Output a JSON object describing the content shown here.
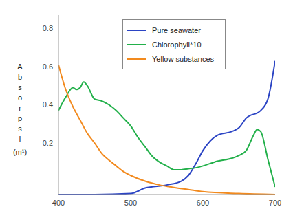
{
  "chart_data": {
    "type": "line",
    "y_label": "Absorpsi (m¹)",
    "xlim": [
      400,
      700
    ],
    "xticks": [
      400,
      500,
      600,
      700
    ],
    "ylim": [
      -0.07,
      0.87
    ],
    "yticks": [
      0.2,
      0.4,
      0.6,
      0.8
    ],
    "grid": false,
    "legend": "top",
    "series": [
      {
        "name": "Pure seawater",
        "color": "#2b44c4",
        "x": [
          400,
          450,
          500,
          520,
          550,
          570,
          580,
          590,
          600,
          610,
          620,
          640,
          650,
          660,
          680,
          690,
          700
        ],
        "values": [
          -0.07,
          -0.07,
          -0.065,
          -0.036,
          -0.02,
          0.0,
          0.03,
          0.09,
          0.16,
          0.21,
          0.24,
          0.26,
          0.28,
          0.33,
          0.37,
          0.43,
          0.63
        ]
      },
      {
        "name": "Chlorophyll*10",
        "color": "#22b04a",
        "x": [
          400,
          410,
          420,
          425,
          430,
          435,
          440,
          450,
          460,
          470,
          480,
          490,
          500,
          510,
          520,
          530,
          540,
          550,
          560,
          570,
          580,
          590,
          600,
          620,
          640,
          650,
          660,
          670,
          675,
          680,
          690,
          700
        ],
        "values": [
          0.37,
          0.44,
          0.49,
          0.48,
          0.49,
          0.52,
          0.5,
          0.43,
          0.42,
          0.4,
          0.37,
          0.33,
          0.29,
          0.23,
          0.18,
          0.13,
          0.1,
          0.08,
          0.06,
          0.06,
          0.065,
          0.07,
          0.08,
          0.105,
          0.12,
          0.135,
          0.16,
          0.24,
          0.27,
          0.26,
          0.115,
          -0.03
        ]
      },
      {
        "name": "Yellow substances",
        "color": "#f28a1e",
        "x": [
          400,
          410,
          420,
          430,
          440,
          450,
          460,
          470,
          480,
          490,
          500,
          520,
          540,
          560,
          580,
          600,
          650,
          700
        ],
        "values": [
          0.61,
          0.48,
          0.39,
          0.32,
          0.25,
          0.2,
          0.145,
          0.11,
          0.08,
          0.05,
          0.03,
          0.0,
          -0.02,
          -0.033,
          -0.044,
          -0.055,
          -0.065,
          -0.07
        ]
      }
    ]
  }
}
